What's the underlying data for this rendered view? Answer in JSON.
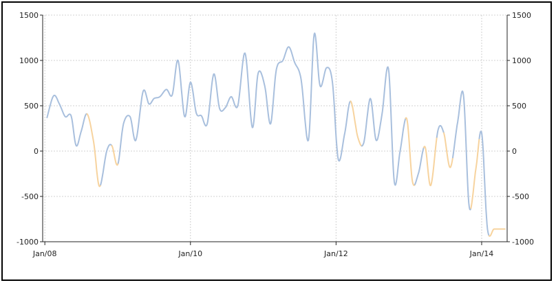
{
  "colors": {
    "series": "#a8bfdd",
    "highlight": "#f7d39e",
    "grid": "#d0d0d0",
    "axis": "#222222"
  },
  "chart_data": {
    "type": "line",
    "title": "",
    "xlabel": "",
    "ylabel": "",
    "ylim": [
      -1000,
      1500
    ],
    "y_ticks": [
      1500,
      1000,
      500,
      0,
      -500,
      -1000
    ],
    "y_tick_labels": [
      "1500",
      "1000",
      "500",
      "0",
      "-500",
      "-1000"
    ],
    "x_ticks": [
      2008.0,
      2010.0,
      2012.0,
      2014.0
    ],
    "x_tick_labels": [
      "Jan/08",
      "Jan/10",
      "Jan/12",
      "Jan/14"
    ],
    "xlim": [
      2007.97,
      2014.35
    ],
    "grid": "x and y dashed",
    "secondary_y_axis": true,
    "series": [
      {
        "values_x": [
          2008.03,
          2008.12,
          2008.2,
          2008.28,
          2008.36,
          2008.43,
          2008.5,
          2008.58,
          2008.67,
          2008.75,
          2008.85,
          2008.92,
          2009.0,
          2009.08,
          2009.17,
          2009.25,
          2009.35,
          2009.43,
          2009.5,
          2009.58,
          2009.67,
          2009.75,
          2009.83,
          2009.92,
          2010.0,
          2010.08,
          2010.15,
          2010.23,
          2010.32,
          2010.4,
          2010.48,
          2010.56,
          2010.65,
          2010.75,
          2010.85,
          2010.93,
          2011.02,
          2011.1,
          2011.18,
          2011.27,
          2011.35,
          2011.43,
          2011.52,
          2011.62,
          2011.7,
          2011.78,
          2011.87,
          2011.95,
          2012.03,
          2012.12,
          2012.2,
          2012.3,
          2012.38,
          2012.47,
          2012.55,
          2012.63,
          2012.72,
          2012.8,
          2012.88,
          2012.97,
          2013.05,
          2013.13,
          2013.22,
          2013.3,
          2013.4,
          2013.48,
          2013.57,
          2013.67,
          2013.75,
          2013.83,
          2013.92,
          2014.0,
          2014.08,
          2014.17,
          2014.25,
          2014.32
        ],
        "values_y": [
          370,
          610,
          520,
          380,
          390,
          60,
          220,
          410,
          100,
          -390,
          0,
          60,
          -150,
          300,
          380,
          120,
          660,
          520,
          580,
          600,
          680,
          620,
          1000,
          380,
          760,
          420,
          390,
          300,
          850,
          470,
          480,
          600,
          500,
          1080,
          260,
          860,
          720,
          300,
          900,
          1000,
          1150,
          980,
          790,
          120,
          1290,
          720,
          920,
          760,
          -90,
          200,
          550,
          150,
          90,
          580,
          120,
          400,
          910,
          -340,
          0,
          360,
          -340,
          -250,
          50,
          -380,
          230,
          200,
          -180,
          320,
          620,
          -620,
          -200,
          200,
          -860,
          -860,
          -860,
          -860
        ],
        "highlight_ranges": [
          [
            2008.58,
            2008.76
          ],
          [
            2008.92,
            2009.0
          ],
          [
            2012.2,
            2012.35
          ],
          [
            2012.95,
            2013.08
          ],
          [
            2013.2,
            2013.38
          ],
          [
            2013.48,
            2013.6
          ],
          [
            2013.85,
            2013.96
          ],
          [
            2014.1,
            2014.32
          ]
        ]
      }
    ]
  }
}
